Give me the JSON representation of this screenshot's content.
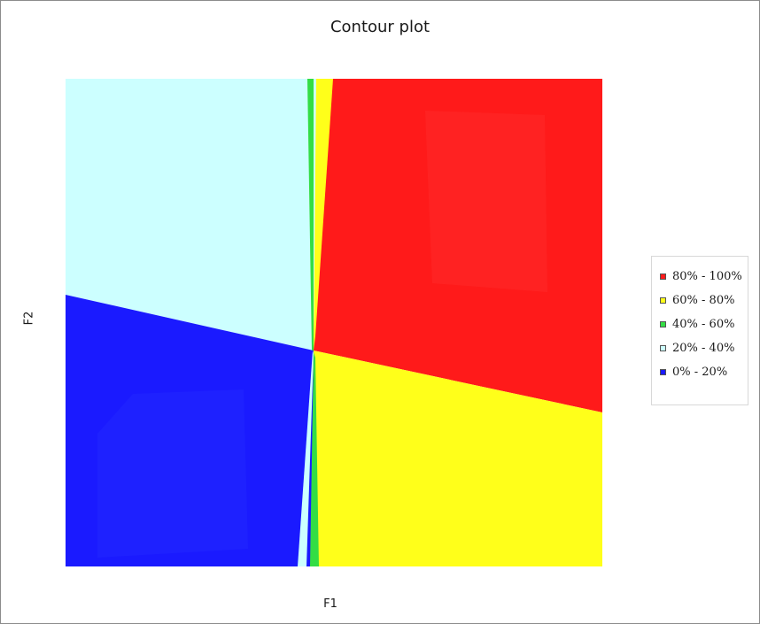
{
  "chart_data": {
    "type": "heatmap",
    "title": "Contour plot",
    "xlabel": "F1",
    "ylabel": "F2",
    "grid": false,
    "legend_position": "right",
    "levels": [
      {
        "label": "80% - 100%",
        "color": "#ff1a1a"
      },
      {
        "label": "60% - 80%",
        "color": "#ffff1a"
      },
      {
        "label": "40% - 60%",
        "color": "#33dd44"
      },
      {
        "label": "20% - 40%",
        "color": "#ccffff"
      },
      {
        "label": "0% - 20%",
        "color": "#1a1aff"
      }
    ],
    "regions": [
      {
        "quadrant": "top-left",
        "level": "20% - 40%"
      },
      {
        "quadrant": "top-right",
        "level": "80% - 100%"
      },
      {
        "quadrant": "bottom-left",
        "level": "0% - 20%"
      },
      {
        "quadrant": "bottom-right",
        "level": "60% - 80%"
      }
    ]
  }
}
